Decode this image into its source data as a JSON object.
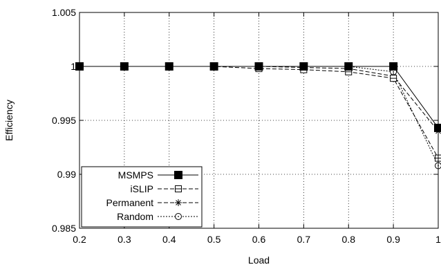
{
  "chart_data": {
    "type": "line",
    "title": "",
    "xlabel": "Load",
    "ylabel": "Efficiency",
    "xlim": [
      0.2,
      1.0
    ],
    "ylim": [
      0.985,
      1.005
    ],
    "x": [
      0.2,
      0.3,
      0.4,
      0.5,
      0.6,
      0.7,
      0.8,
      0.9,
      1.0
    ],
    "x_ticks": [
      "0.2",
      "0.3",
      "0.4",
      "0.5",
      "0.6",
      "0.7",
      "0.8",
      "0.9",
      "1"
    ],
    "y_ticks": [
      {
        "value": 1.005,
        "label": "1.005"
      },
      {
        "value": 1.0,
        "label": "1"
      },
      {
        "value": 0.995,
        "label": "0.995"
      },
      {
        "value": 0.99,
        "label": "0.99"
      },
      {
        "value": 0.985,
        "label": "0.985"
      }
    ],
    "grid": true,
    "legend_position": "bottom-left",
    "series": [
      {
        "name": "MSMPS",
        "marker": "filled-square",
        "dash": "solid",
        "values": [
          1.0,
          1.0,
          1.0,
          1.0,
          1.0,
          1.0,
          1.0,
          1.0,
          0.9943
        ]
      },
      {
        "name": "iSLIP",
        "marker": "open-square",
        "dash": "dashed",
        "values": [
          1.0,
          1.0,
          1.0,
          1.0,
          0.9998,
          0.9997,
          0.9995,
          0.9989,
          0.9915
        ]
      },
      {
        "name": "Permanent",
        "marker": "asterisk",
        "dash": "dashed",
        "values": [
          1.0,
          1.0,
          1.0,
          1.0,
          1.0,
          0.9999,
          0.9998,
          0.9991,
          0.994
        ]
      },
      {
        "name": "Random",
        "marker": "open-circle",
        "dash": "dotted",
        "values": [
          1.0,
          1.0,
          1.0,
          1.0,
          1.0,
          1.0,
          1.0,
          0.9995,
          0.9908
        ]
      }
    ]
  }
}
